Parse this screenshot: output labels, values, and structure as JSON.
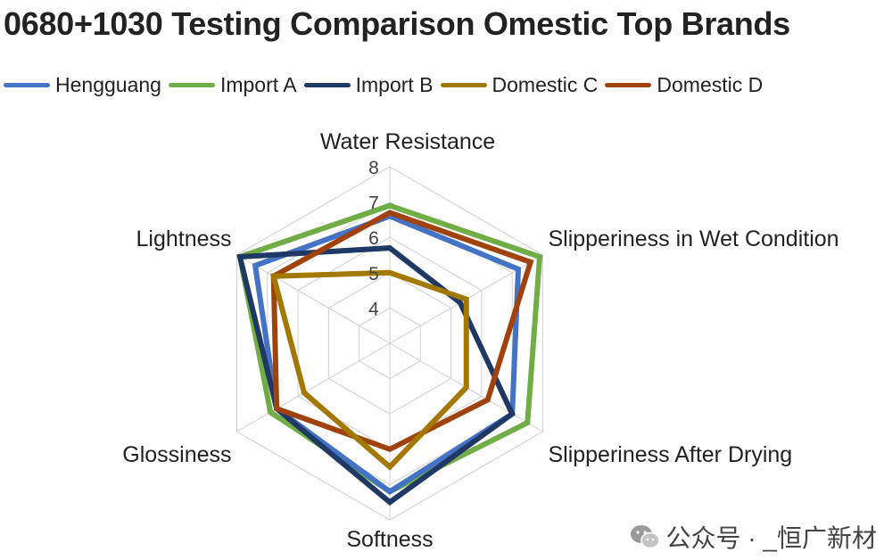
{
  "header": {
    "title": "0680+1030 Testing Comparison Omestic Top Brands"
  },
  "watermark": {
    "text": "公众号 · _恒广新材"
  },
  "chart_data": {
    "type": "radar",
    "title": "0680+1030 Testing Comparison Omestic Top Brands",
    "axes": [
      "Water Resistance",
      "Slipperiness in Wet Condition",
      "Slipperiness After Drying",
      "Softness",
      "Glossiness",
      "Lightness"
    ],
    "ticks": [
      4,
      5,
      6,
      7,
      8
    ],
    "range": [
      3,
      8
    ],
    "grid": true,
    "legend_position": "top-left",
    "series": [
      {
        "name": "Hengguang",
        "color": "#4472C4",
        "values": [
          6.6,
          7.2,
          7.0,
          7.2,
          6.7,
          7.4
        ]
      },
      {
        "name": "Import A",
        "color": "#70AD47",
        "values": [
          6.9,
          7.9,
          7.5,
          7.2,
          6.9,
          7.9
        ]
      },
      {
        "name": "Import B",
        "color": "#1F3864",
        "values": [
          5.7,
          5.3,
          7.0,
          7.5,
          6.7,
          7.9
        ]
      },
      {
        "name": "Domestic C",
        "color": "#A27800",
        "values": [
          5.0,
          5.5,
          5.5,
          6.5,
          5.8,
          6.8
        ]
      },
      {
        "name": "Domestic D",
        "color": "#A0420C",
        "values": [
          6.7,
          7.6,
          6.2,
          6.0,
          6.7,
          6.8
        ]
      }
    ]
  }
}
